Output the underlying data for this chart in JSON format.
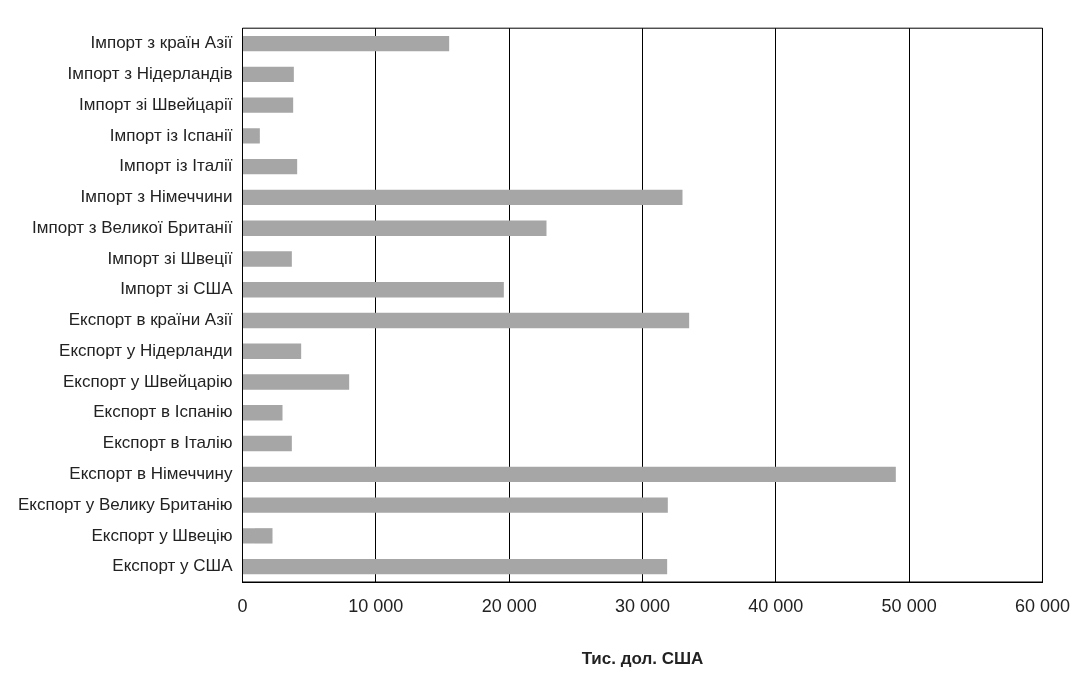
{
  "chart_data": {
    "type": "bar",
    "orientation": "horizontal",
    "xlabel": "Тис. дол. США",
    "categories": [
      "Імпорт з країн Азії",
      "Імпорт з Нідерландів",
      "Імпорт зі Швейцарії",
      "Імпорт із Іспанії",
      "Імпорт із Італії",
      "Імпорт з Німеччини",
      "Імпорт з Великої Британії",
      "Імпорт зі Швеції",
      "Імпорт зі США",
      "Експорт в країни Азії",
      "Експорт у Нідерланди",
      "Експорт у Швейцарію",
      "Експорт в Іспанію",
      "Експорт в Італію",
      "Експорт в Німеччину",
      "Експорт у Велику Британію",
      "Експорт у Швецію",
      "Експорт у США"
    ],
    "values": [
      15500,
      3850,
      3800,
      1300,
      4100,
      33000,
      22800,
      3700,
      19600,
      33500,
      4400,
      8000,
      3000,
      3700,
      49000,
      31900,
      2250,
      31850
    ],
    "color": "#a6a6a6",
    "xlim": [
      0,
      60000
    ],
    "xticks": [
      {
        "value": 0,
        "label": "0"
      },
      {
        "value": 10000,
        "label": "10 000"
      },
      {
        "value": 20000,
        "label": "20 000"
      },
      {
        "value": 30000,
        "label": "30 000"
      },
      {
        "value": 40000,
        "label": "40 000"
      },
      {
        "value": 50000,
        "label": "50 000"
      },
      {
        "value": 60000,
        "label": "60 000"
      }
    ],
    "grid": "x",
    "legend": false
  }
}
